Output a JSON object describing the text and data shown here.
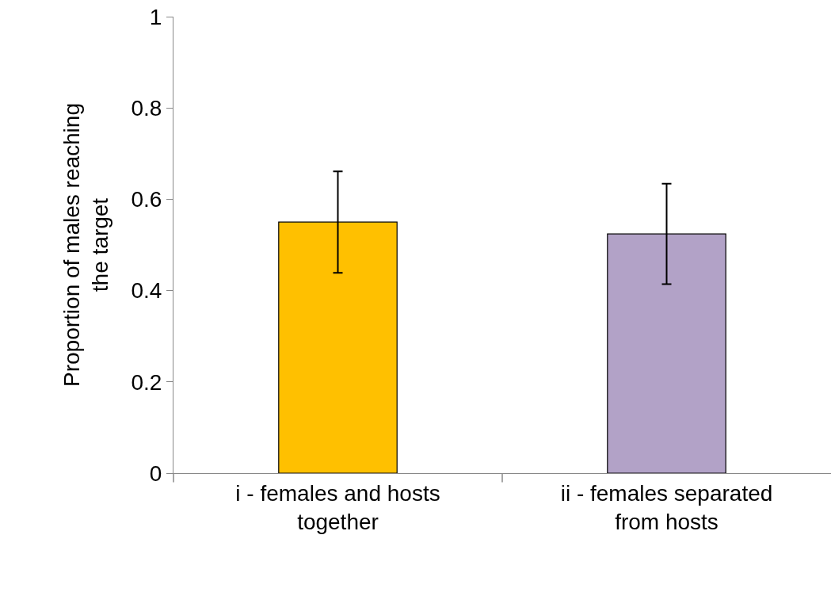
{
  "chart_data": {
    "type": "bar",
    "ylabel": "Proportion of males reaching the target",
    "categories": [
      "i - females and hosts together",
      "ii - females separated from hosts"
    ],
    "values": [
      0.55,
      0.524
    ],
    "colors": [
      "#ffc000",
      "#b2a2c7"
    ],
    "errors": [
      0.111,
      0.11
    ],
    "ylim": [
      0,
      1
    ],
    "yticks": [
      0,
      0.2,
      0.4,
      0.6,
      0.8,
      1
    ]
  }
}
